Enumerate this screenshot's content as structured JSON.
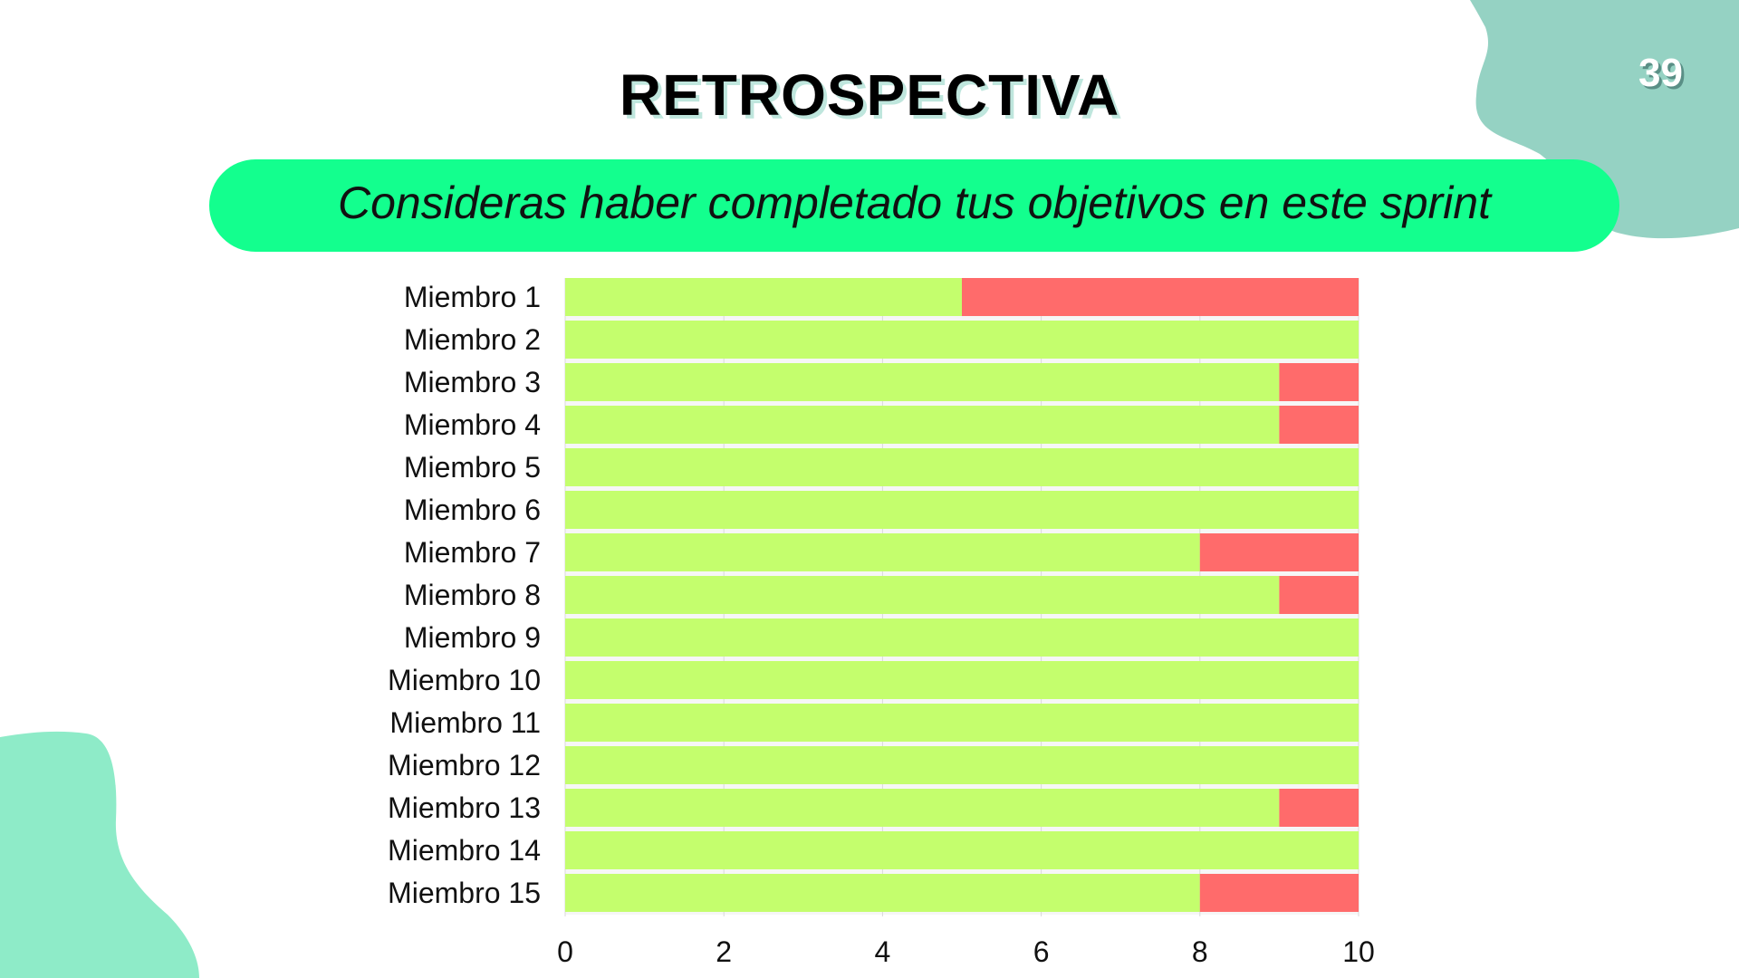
{
  "slide": {
    "number": "39",
    "title": "RETROSPECTIVA",
    "subtitle": "Consideras haber completado tus objetivos en este sprint"
  },
  "colors": {
    "banner": "#13ff8e",
    "blob_top_right": "#95d2c3",
    "blob_bottom_left": "#8eebc8",
    "series_yes": "#c4fe6d",
    "series_no": "#ff6b6b"
  },
  "chart_data": {
    "type": "bar",
    "orientation": "horizontal",
    "stacked": true,
    "categories": [
      "Miembro 1",
      "Miembro 2",
      "Miembro 3",
      "Miembro 4",
      "Miembro 5",
      "Miembro 6",
      "Miembro 7",
      "Miembro 8",
      "Miembro 9",
      "Miembro 10",
      "Miembro 11",
      "Miembro 12",
      "Miembro 13",
      "Miembro 14",
      "Miembro 15"
    ],
    "series": [
      {
        "values": [
          5,
          10,
          9,
          9,
          10,
          10,
          8,
          9,
          10,
          10,
          10,
          10,
          9,
          10,
          8
        ],
        "color": "#c4fe6d"
      },
      {
        "values": [
          5,
          0,
          1,
          1,
          0,
          0,
          2,
          1,
          0,
          0,
          0,
          0,
          1,
          0,
          2
        ],
        "color": "#ff6b6b"
      }
    ],
    "xlim": [
      0,
      10
    ],
    "xticks": [
      0,
      2,
      4,
      6,
      8,
      10
    ],
    "grid": true,
    "legend": "none"
  }
}
